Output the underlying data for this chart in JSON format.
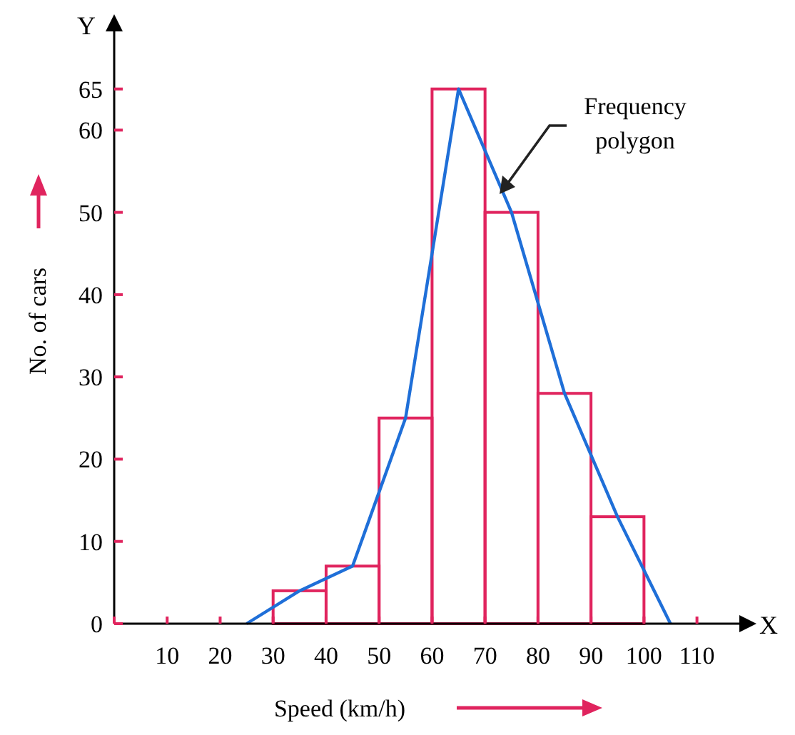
{
  "chart_data": {
    "type": "histogram",
    "xlabel": "Speed (km/h)",
    "ylabel": "No. of cars",
    "series": [
      {
        "color": "#e0245e",
        "bins": [
          30,
          40,
          50,
          60,
          70,
          80,
          90,
          100
        ],
        "values": [
          4,
          7,
          25,
          65,
          50,
          28,
          13
        ]
      },
      {
        "type": "line",
        "color": "#1f6fd8",
        "x": [
          25,
          35,
          45,
          55,
          65,
          75,
          85,
          95,
          105
        ],
        "values": [
          0,
          4,
          7,
          25,
          65,
          50,
          28,
          13,
          0
        ]
      }
    ],
    "xlim": [
      0,
      118
    ],
    "xticks": [
      {
        "value": 0,
        "label": null
      },
      10,
      20,
      30,
      40,
      50,
      60,
      70,
      80,
      90,
      100,
      110
    ],
    "ylim": [
      0,
      72
    ],
    "yticks": [
      0,
      10,
      20,
      30,
      40,
      50,
      60,
      65
    ],
    "grid": false,
    "annotations": [
      "Frequency polygon",
      "Y",
      "X"
    ]
  }
}
